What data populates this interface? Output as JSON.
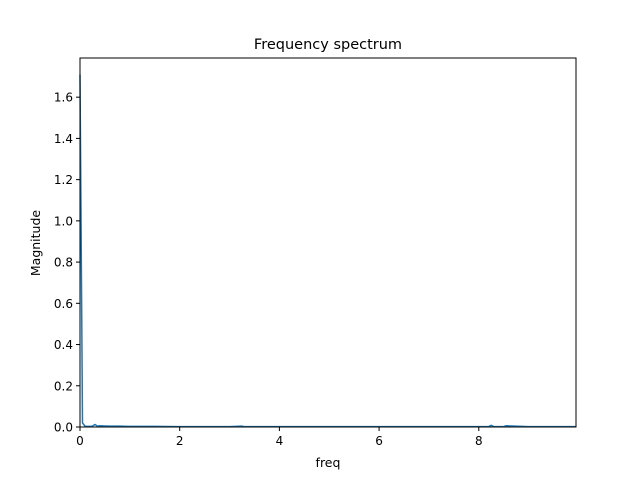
{
  "chart_data": {
    "type": "line",
    "title": "Frequency spectrum",
    "xlabel": "freq",
    "ylabel": "Magnitude",
    "xlim": [
      0,
      9.95
    ],
    "ylim": [
      0,
      1.79
    ],
    "x_ticks": [
      0,
      2,
      4,
      6,
      8
    ],
    "x_tick_labels": [
      "0",
      "2",
      "4",
      "6",
      "8"
    ],
    "y_ticks": [
      0.0,
      0.2,
      0.4,
      0.6,
      0.8,
      1.0,
      1.2,
      1.4,
      1.6
    ],
    "y_tick_labels": [
      "0.0",
      "0.2",
      "0.4",
      "0.6",
      "0.8",
      "1.0",
      "1.2",
      "1.4",
      "1.6"
    ],
    "grid": false,
    "series": [
      {
        "color": "#1f77b4",
        "x": [
          0.0,
          0.05,
          0.1,
          0.15,
          0.2,
          0.25,
          0.3,
          0.35,
          0.4,
          0.5,
          0.6,
          0.8,
          1.0,
          1.5,
          2.0,
          3.0,
          3.25,
          3.3,
          4.0,
          5.0,
          6.0,
          7.0,
          8.0,
          8.2,
          8.25,
          8.3,
          8.5,
          8.55,
          9.0,
          9.95
        ],
        "y": [
          1.71,
          0.02,
          0.004,
          0.003,
          0.003,
          0.004,
          0.012,
          0.004,
          0.006,
          0.005,
          0.004,
          0.004,
          0.003,
          0.003,
          0.002,
          0.002,
          0.004,
          0.002,
          0.002,
          0.002,
          0.002,
          0.002,
          0.002,
          0.002,
          0.008,
          0.002,
          0.002,
          0.006,
          0.002,
          0.002
        ]
      }
    ]
  }
}
